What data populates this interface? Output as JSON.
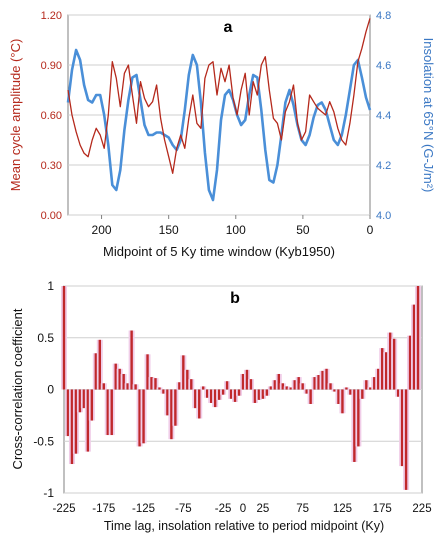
{
  "colors": {
    "series_red": "#b5291c",
    "series_blue": "#4a8fd8",
    "bar_red": "#c0282b",
    "bar_halo": "#f0cde8",
    "grid": "#cfcfcf",
    "frame": "#808080",
    "left_axis_text": "#b5291c",
    "right_axis_text": "#3b78c4"
  },
  "chart_data": [
    {
      "type": "line",
      "panel_label": "a",
      "xlabel": "Midpoint of 5 Ky time window (Kyb1950)",
      "ylabel_left": "Mean cycle amplitude (°C)",
      "ylabel_right": "Insolation at 65°N (G-J/m²)",
      "xlim": [
        225,
        0
      ],
      "x_reversed": true,
      "ylim_left": [
        0.0,
        1.2
      ],
      "ylim_right": [
        4.0,
        4.8
      ],
      "x_ticks": [
        200,
        150,
        100,
        50,
        0
      ],
      "y_left_ticks": [
        "0.00",
        "0.30",
        "0.60",
        "0.90",
        "1.20"
      ],
      "y_right_ticks": [
        "4.0",
        "4.2",
        "4.4",
        "4.6",
        "4.8"
      ],
      "grid": "horizontal",
      "series": [
        {
          "axis": "left",
          "x": [
            225,
            222,
            219,
            216,
            213,
            210,
            207,
            204,
            201,
            198,
            195,
            192,
            189,
            186,
            183,
            180,
            177,
            174,
            171,
            168,
            165,
            162,
            159,
            156,
            153,
            150,
            147,
            144,
            141,
            138,
            135,
            132,
            129,
            126,
            123,
            120,
            117,
            114,
            111,
            108,
            105,
            102,
            99,
            96,
            93,
            90,
            87,
            84,
            81,
            78,
            75,
            72,
            69,
            66,
            63,
            60,
            57,
            54,
            51,
            48,
            45,
            42,
            39,
            36,
            33,
            30,
            27,
            24,
            21,
            18,
            15,
            12,
            9,
            6,
            3,
            0
          ],
          "y": [
            0.75,
            0.6,
            0.5,
            0.42,
            0.37,
            0.35,
            0.45,
            0.52,
            0.48,
            0.4,
            0.6,
            0.92,
            0.82,
            0.65,
            0.85,
            0.9,
            0.72,
            0.55,
            0.8,
            0.7,
            0.65,
            0.68,
            0.78,
            0.58,
            0.45,
            0.35,
            0.25,
            0.4,
            0.48,
            0.4,
            0.58,
            0.72,
            0.55,
            0.52,
            0.82,
            0.9,
            0.92,
            0.72,
            0.88,
            0.8,
            0.9,
            0.7,
            0.6,
            0.75,
            0.85,
            0.6,
            0.8,
            0.72,
            0.9,
            0.95,
            0.75,
            0.58,
            0.55,
            0.45,
            0.62,
            0.68,
            0.78,
            0.55,
            0.45,
            0.5,
            0.72,
            0.68,
            0.64,
            0.62,
            0.6,
            0.68,
            0.62,
            0.52,
            0.45,
            0.42,
            0.55,
            0.72,
            0.92,
            1.0,
            1.1,
            1.18
          ]
        },
        {
          "axis": "right",
          "x": [
            225,
            222,
            219,
            216,
            213,
            210,
            207,
            204,
            201,
            198,
            195,
            192,
            189,
            186,
            183,
            180,
            177,
            174,
            171,
            168,
            165,
            162,
            159,
            156,
            153,
            150,
            147,
            144,
            141,
            138,
            135,
            132,
            129,
            126,
            123,
            120,
            117,
            114,
            111,
            108,
            105,
            102,
            99,
            96,
            93,
            90,
            87,
            84,
            81,
            78,
            75,
            72,
            69,
            66,
            63,
            60,
            57,
            54,
            51,
            48,
            45,
            42,
            39,
            36,
            33,
            30,
            27,
            24,
            21,
            18,
            15,
            12,
            9,
            6,
            3,
            0
          ],
          "y": [
            4.45,
            4.58,
            4.66,
            4.62,
            4.52,
            4.46,
            4.45,
            4.48,
            4.48,
            4.4,
            4.28,
            4.12,
            4.1,
            4.18,
            4.34,
            4.46,
            4.55,
            4.56,
            4.46,
            4.36,
            4.32,
            4.32,
            4.33,
            4.33,
            4.32,
            4.31,
            4.28,
            4.26,
            4.3,
            4.42,
            4.56,
            4.64,
            4.6,
            4.45,
            4.25,
            4.1,
            4.06,
            4.18,
            4.38,
            4.48,
            4.5,
            4.46,
            4.4,
            4.36,
            4.38,
            4.48,
            4.56,
            4.55,
            4.42,
            4.26,
            4.14,
            4.13,
            4.2,
            4.32,
            4.45,
            4.5,
            4.44,
            4.36,
            4.3,
            4.28,
            4.32,
            4.39,
            4.44,
            4.45,
            4.42,
            4.36,
            4.3,
            4.28,
            4.32,
            4.4,
            4.5,
            4.6,
            4.62,
            4.55,
            4.47,
            4.42
          ]
        }
      ]
    },
    {
      "type": "bar",
      "panel_label": "b",
      "xlabel": "Time lag, insolation relative to period midpoint (Ky)",
      "ylabel": "Cross-correlation coefficient",
      "xlim": [
        -225,
        225
      ],
      "ylim": [
        -1,
        1
      ],
      "x_ticks": [
        "-225",
        "-175",
        "-125",
        "-75",
        "-25",
        "0",
        "25",
        "75",
        "125",
        "175",
        "225"
      ],
      "y_ticks": [
        "1",
        "0.5",
        "0",
        "-0.5",
        "-1"
      ],
      "grid": "horizontal",
      "x": [
        -225,
        -220,
        -215,
        -210,
        -205,
        -200,
        -195,
        -190,
        -185,
        -180,
        -175,
        -170,
        -165,
        -160,
        -155,
        -150,
        -145,
        -140,
        -135,
        -130,
        -125,
        -120,
        -115,
        -110,
        -105,
        -100,
        -95,
        -90,
        -85,
        -80,
        -75,
        -70,
        -65,
        -60,
        -55,
        -50,
        -45,
        -40,
        -35,
        -30,
        -25,
        -20,
        -15,
        -10,
        -5,
        0,
        5,
        10,
        15,
        20,
        25,
        30,
        35,
        40,
        45,
        50,
        55,
        60,
        65,
        70,
        75,
        80,
        85,
        90,
        95,
        100,
        105,
        110,
        115,
        120,
        125,
        130,
        135,
        140,
        145,
        150,
        155,
        160,
        165,
        170,
        175,
        180,
        185,
        190,
        195,
        200,
        205,
        210,
        215,
        220,
        225
      ],
      "values": [
        1.0,
        -0.45,
        -0.72,
        -0.62,
        -0.22,
        -0.18,
        -0.6,
        -0.3,
        0.35,
        0.48,
        0.06,
        -0.44,
        -0.44,
        0.25,
        0.2,
        0.15,
        0.06,
        0.57,
        0.05,
        -0.55,
        -0.52,
        0.34,
        0.12,
        0.11,
        0.02,
        -0.04,
        -0.25,
        -0.48,
        -0.35,
        0.07,
        0.33,
        0.19,
        0.1,
        -0.18,
        -0.28,
        0.03,
        -0.08,
        -0.13,
        -0.17,
        -0.1,
        -0.05,
        0.08,
        -0.09,
        -0.12,
        -0.06,
        0.15,
        0.19,
        0.1,
        -0.13,
        -0.1,
        -0.09,
        -0.06,
        0.03,
        0.09,
        0.15,
        0.06,
        0.03,
        0.02,
        0.09,
        0.12,
        0.06,
        -0.04,
        -0.14,
        0.12,
        0.14,
        0.18,
        0.2,
        0.06,
        -0.02,
        -0.14,
        -0.23,
        0.02,
        -0.05,
        -0.7,
        -0.55,
        -0.09,
        0.09,
        0.02,
        0.12,
        0.2,
        0.4,
        0.36,
        0.55,
        0.49,
        -0.07,
        -0.74,
        -0.97,
        0.52,
        0.82,
        1.0,
        0.0
      ]
    }
  ]
}
